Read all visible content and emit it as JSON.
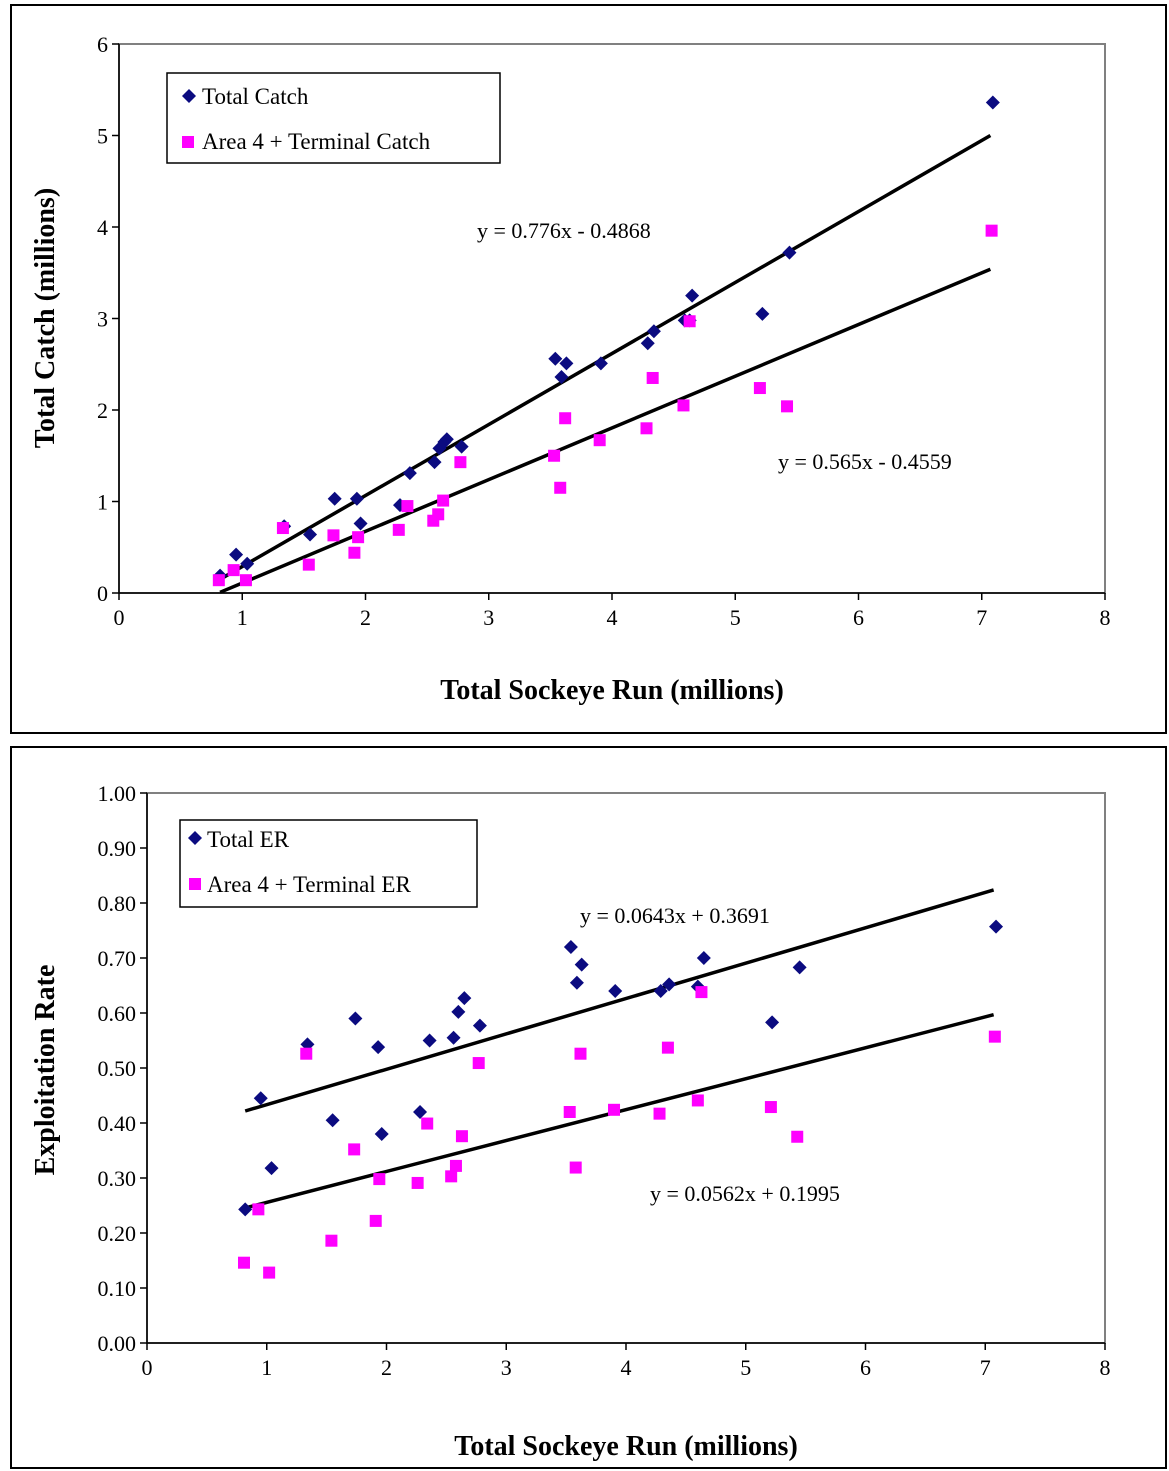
{
  "colors": {
    "series1": "#0b0b80",
    "series2": "#ff00ff",
    "trend": "#000000",
    "plot_border": "#808080"
  },
  "chart_data": [
    {
      "type": "scatter",
      "xlabel": "Total Sockeye Run (millions)",
      "ylabel": "Total Catch (millions)",
      "xlim": [
        0,
        8
      ],
      "ylim": [
        0,
        6
      ],
      "xticks": [
        "0",
        "1",
        "2",
        "3",
        "4",
        "5",
        "6",
        "7",
        "8"
      ],
      "yticks": [
        "0",
        "1",
        "2",
        "3",
        "4",
        "5",
        "6"
      ],
      "grid": false,
      "legend_position": "top-left",
      "series": [
        {
          "name": "Total Catch",
          "marker": "diamond",
          "color": "#0b0b80",
          "x": [
            0.82,
            0.95,
            1.04,
            1.34,
            1.55,
            1.75,
            1.93,
            1.96,
            2.28,
            2.36,
            2.56,
            2.6,
            2.64,
            2.66,
            2.78,
            3.54,
            3.59,
            3.63,
            3.91,
            4.29,
            4.34,
            4.59,
            4.63,
            4.65,
            5.22,
            5.44,
            7.09
          ],
          "y": [
            0.19,
            0.42,
            0.32,
            0.73,
            0.64,
            1.03,
            1.03,
            0.76,
            0.96,
            1.31,
            1.43,
            1.58,
            1.65,
            1.68,
            1.6,
            2.56,
            2.36,
            2.51,
            2.51,
            2.73,
            2.86,
            2.98,
            2.98,
            3.25,
            3.05,
            3.72,
            5.36
          ]
        },
        {
          "name": "Area 4 + Terminal Catch",
          "marker": "square",
          "color": "#ff00ff",
          "x": [
            0.81,
            0.93,
            1.03,
            1.33,
            1.54,
            1.74,
            1.91,
            1.94,
            2.27,
            2.34,
            2.55,
            2.59,
            2.63,
            2.77,
            3.53,
            3.58,
            3.62,
            3.9,
            4.28,
            4.33,
            4.58,
            4.63,
            5.2,
            5.42,
            7.08
          ],
          "y": [
            0.14,
            0.25,
            0.14,
            0.71,
            0.31,
            0.63,
            0.44,
            0.61,
            0.69,
            0.95,
            0.79,
            0.86,
            1.01,
            1.43,
            1.5,
            1.15,
            1.91,
            1.67,
            1.8,
            2.35,
            2.05,
            2.97,
            2.24,
            2.04,
            3.96
          ]
        }
      ],
      "trendlines": [
        {
          "equation": "y = 0.776x - 0.4868",
          "slope": 0.776,
          "intercept": -0.4868,
          "x_range": [
            0.82,
            7.07
          ]
        },
        {
          "equation": "y = 0.565x - 0.4559",
          "slope": 0.565,
          "intercept": -0.4559,
          "x_range": [
            0.82,
            7.07
          ]
        }
      ]
    },
    {
      "type": "scatter",
      "xlabel": "Total Sockeye Run (millions)",
      "ylabel": "Exploitation Rate",
      "xlim": [
        0,
        8
      ],
      "ylim": [
        0,
        1
      ],
      "xticks": [
        "0",
        "1",
        "2",
        "3",
        "4",
        "5",
        "6",
        "7",
        "8"
      ],
      "yticks": [
        "0.00",
        "0.10",
        "0.20",
        "0.30",
        "0.40",
        "0.50",
        "0.60",
        "0.70",
        "0.80",
        "0.90",
        "1.00"
      ],
      "grid": false,
      "legend_position": "top-left",
      "series": [
        {
          "name": "Total ER",
          "marker": "diamond",
          "color": "#0b0b80",
          "x": [
            0.82,
            0.95,
            1.04,
            1.34,
            1.55,
            1.74,
            1.93,
            1.96,
            2.28,
            2.36,
            2.56,
            2.6,
            2.65,
            2.78,
            3.54,
            3.59,
            3.63,
            3.91,
            4.29,
            4.36,
            4.6,
            4.65,
            5.22,
            5.45,
            7.09
          ],
          "y": [
            0.243,
            0.445,
            0.318,
            0.543,
            0.405,
            0.59,
            0.538,
            0.38,
            0.42,
            0.55,
            0.555,
            0.602,
            0.627,
            0.577,
            0.72,
            0.655,
            0.688,
            0.64,
            0.64,
            0.652,
            0.648,
            0.7,
            0.583,
            0.683,
            0.757
          ]
        },
        {
          "name": "Area 4 + Terminal ER",
          "marker": "square",
          "color": "#ff00ff",
          "x": [
            0.81,
            0.93,
            1.02,
            1.33,
            1.54,
            1.73,
            1.91,
            1.94,
            2.26,
            2.34,
            2.54,
            2.58,
            2.63,
            2.77,
            3.53,
            3.58,
            3.62,
            3.9,
            4.28,
            4.35,
            4.6,
            4.63,
            5.21,
            5.43,
            7.08
          ],
          "y": [
            0.146,
            0.243,
            0.128,
            0.526,
            0.186,
            0.352,
            0.222,
            0.298,
            0.291,
            0.399,
            0.303,
            0.322,
            0.376,
            0.509,
            0.42,
            0.319,
            0.526,
            0.424,
            0.417,
            0.537,
            0.441,
            0.638,
            0.429,
            0.375,
            0.557
          ]
        }
      ],
      "trendlines": [
        {
          "equation": "y = 0.0643x + 0.3691",
          "slope": 0.0643,
          "intercept": 0.3691,
          "x_range": [
            0.82,
            7.07
          ]
        },
        {
          "equation": "y = 0.0562x + 0.1995",
          "slope": 0.0562,
          "intercept": 0.1995,
          "x_range": [
            0.82,
            7.07
          ]
        }
      ]
    }
  ]
}
